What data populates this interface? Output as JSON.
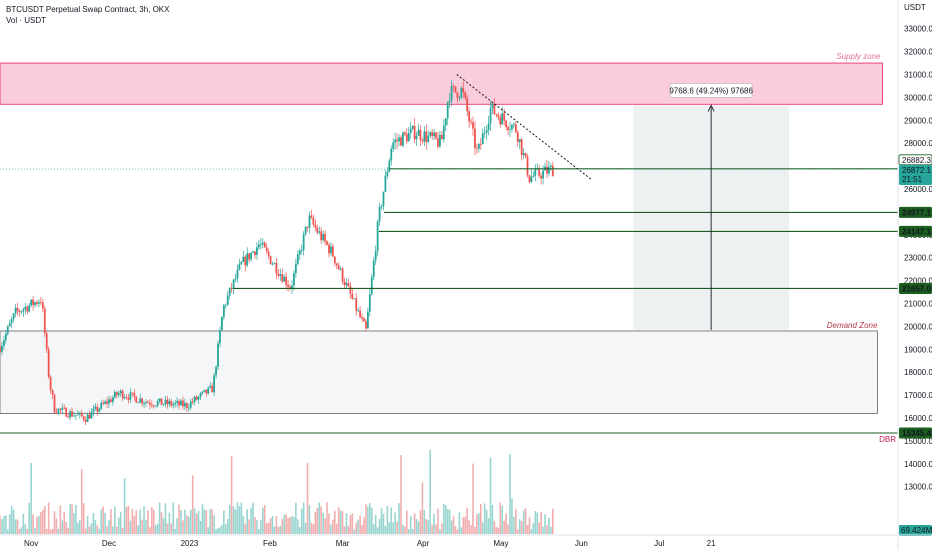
{
  "header": {
    "title": "BTCUSDT Perpetual Swap Contract, 3h, OKX",
    "volume_label": "Vol · USDT"
  },
  "colors": {
    "up": "#26a69a",
    "down": "#ef5350",
    "level_line": "#1b5e20",
    "supply_fill": "#f8bbd0",
    "supply_stroke": "#e91e63",
    "demand_fill": "#f5f6f8",
    "measure_fill": "#eceff1",
    "current_price": "#26a69a",
    "volume_up": "#80cbc4",
    "volume_down": "#ef9a9a"
  },
  "chart_data": {
    "type": "candlestick",
    "title": "BTCUSDT Perpetual Swap Contract, 3h, OKX",
    "y_axis_unit": "USDT",
    "ylim": [
      13000,
      34000
    ],
    "y_ticks": [
      13000,
      14000,
      15000,
      16000,
      17000,
      18000,
      19000,
      20000,
      21000,
      22000,
      23000,
      24000,
      25000,
      26000,
      27000,
      28000,
      29000,
      30000,
      31000,
      32000,
      33000
    ],
    "y_tick_labels": [
      "13000.0",
      "14000.0",
      "15000.0",
      "16000.0",
      "17000.0",
      "18000.0",
      "19000.0",
      "20000.0",
      "21000.0",
      "22000.0",
      "23000.0",
      "24000.0",
      "25000.0",
      "26000.0",
      "27000.0",
      "28000.0",
      "29000.0",
      "30000.0",
      "31000.0",
      "32000.0",
      "33000.0"
    ],
    "x_labels": [
      "Nov",
      "Dec",
      "2023",
      "Feb",
      "Mar",
      "Apr",
      "May",
      "Jun",
      "Jul",
      "21"
    ],
    "x_label_dates": [
      "2022-11-01",
      "2022-12-01",
      "2023-01-01",
      "2023-02-01",
      "2023-03-01",
      "2023-04-01",
      "2023-05-01",
      "2023-06-01",
      "2023-07-01",
      "2023-07-21"
    ],
    "x_range": [
      "2022-10-20",
      "2023-10-01"
    ],
    "price_path": [
      {
        "date": "2022-10-20",
        "price": 19100
      },
      {
        "date": "2022-10-26",
        "price": 20600
      },
      {
        "date": "2022-11-05",
        "price": 21200
      },
      {
        "date": "2022-11-08",
        "price": 17600
      },
      {
        "date": "2022-11-10",
        "price": 16400
      },
      {
        "date": "2022-11-22",
        "price": 16000
      },
      {
        "date": "2022-12-05",
        "price": 17100
      },
      {
        "date": "2022-12-16",
        "price": 16700
      },
      {
        "date": "2022-12-31",
        "price": 16550
      },
      {
        "date": "2023-01-10",
        "price": 17300
      },
      {
        "date": "2023-01-14",
        "price": 20800
      },
      {
        "date": "2023-01-21",
        "price": 22700
      },
      {
        "date": "2023-01-28",
        "price": 23600
      },
      {
        "date": "2023-02-09",
        "price": 21700
      },
      {
        "date": "2023-02-16",
        "price": 24700
      },
      {
        "date": "2023-02-25",
        "price": 23200
      },
      {
        "date": "2023-03-10",
        "price": 19800
      },
      {
        "date": "2023-03-15",
        "price": 24800
      },
      {
        "date": "2023-03-20",
        "price": 28000
      },
      {
        "date": "2023-03-29",
        "price": 28500
      },
      {
        "date": "2023-04-08",
        "price": 28000
      },
      {
        "date": "2023-04-11",
        "price": 30200
      },
      {
        "date": "2023-04-16",
        "price": 30300
      },
      {
        "date": "2023-04-22",
        "price": 27500
      },
      {
        "date": "2023-04-27",
        "price": 29500
      },
      {
        "date": "2023-05-07",
        "price": 28600
      },
      {
        "date": "2023-05-12",
        "price": 26500
      },
      {
        "date": "2023-05-21",
        "price": 26872
      }
    ],
    "horizontal_levels": [
      {
        "value": 26882.3,
        "label": "26882.3",
        "start_date": "2023-03-19"
      },
      {
        "value": 24977.1,
        "label": "24977.1",
        "start_date": "2023-03-17"
      },
      {
        "value": 24147.1,
        "label": "24147.1",
        "start_date": "2023-03-15"
      },
      {
        "value": 21657.0,
        "label": "21657.0",
        "start_date": "2023-01-18"
      },
      {
        "value": 15345.4,
        "label": "15345.4",
        "start_date": "2022-10-20"
      }
    ],
    "current_price": {
      "value": 26872.1,
      "label": "26872.1",
      "countdown": "21:51"
    },
    "zones": [
      {
        "name": "Supply zone",
        "from": 29700,
        "to": 31500,
        "start_date": "2022-10-20",
        "end_date": "2023-09-25"
      },
      {
        "name": "Demand Zone",
        "from": 16200,
        "to": 19800,
        "start_date": "2022-10-20",
        "end_date": "2023-09-25"
      }
    ],
    "trendline": {
      "from": {
        "date": "2023-04-14",
        "price": 31000
      },
      "to": {
        "date": "2023-06-05",
        "price": 26400
      }
    },
    "measure": {
      "label": "9768.6 (49.24%) 97686",
      "from_price": 19850,
      "to_price": 29650,
      "start_date": "2023-06-21",
      "end_date": "2023-08-20",
      "arrow_date": "2023-07-21"
    },
    "dbr_label": "DBR",
    "volume": {
      "last_value_label": "69.424M"
    }
  }
}
